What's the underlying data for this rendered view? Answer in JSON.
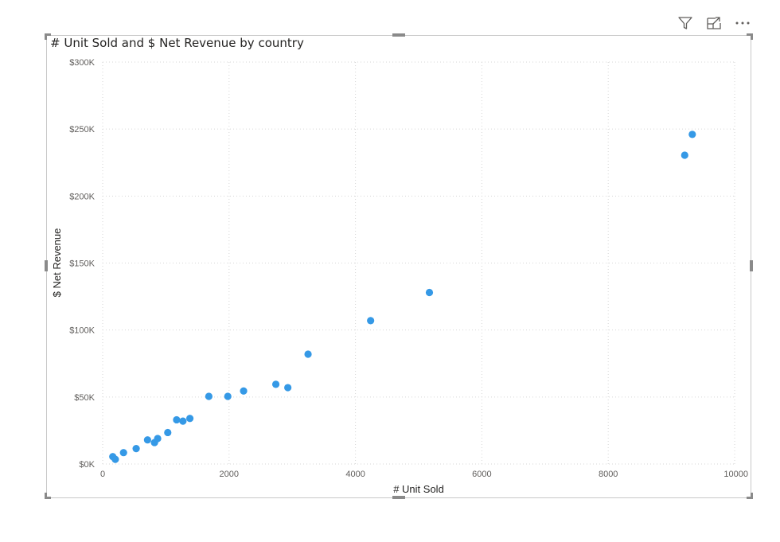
{
  "toolbar": {
    "filter_icon": "filter-icon",
    "focus_icon": "focus-mode-icon",
    "more_icon": "more-options-icon"
  },
  "chart_data": {
    "type": "scatter",
    "title": "# Unit Sold and $ Net Revenue by country",
    "xlabel": "# Unit Sold",
    "ylabel": "$ Net Revenue",
    "xlim": [
      0,
      10000
    ],
    "ylim": [
      0,
      300000
    ],
    "x_ticks": [
      0,
      2000,
      4000,
      6000,
      8000,
      10000
    ],
    "x_tick_labels": [
      "0",
      "2000",
      "4000",
      "6000",
      "8000",
      "10000"
    ],
    "y_ticks": [
      0,
      50000,
      100000,
      150000,
      200000,
      250000,
      300000
    ],
    "y_tick_labels": [
      "$0K",
      "$50K",
      "$100K",
      "$150K",
      "$200K",
      "$250K",
      "$300K"
    ],
    "grid": true,
    "marker_color": "#3599E6",
    "points": [
      {
        "x": 160,
        "y": 5500
      },
      {
        "x": 200,
        "y": 3500
      },
      {
        "x": 330,
        "y": 8500
      },
      {
        "x": 530,
        "y": 11500
      },
      {
        "x": 710,
        "y": 18000
      },
      {
        "x": 820,
        "y": 16000
      },
      {
        "x": 870,
        "y": 19000
      },
      {
        "x": 1030,
        "y": 23500
      },
      {
        "x": 1170,
        "y": 33000
      },
      {
        "x": 1270,
        "y": 32000
      },
      {
        "x": 1380,
        "y": 34000
      },
      {
        "x": 1680,
        "y": 50500
      },
      {
        "x": 1980,
        "y": 50500
      },
      {
        "x": 2230,
        "y": 54500
      },
      {
        "x": 2740,
        "y": 59500
      },
      {
        "x": 2930,
        "y": 57000
      },
      {
        "x": 3250,
        "y": 82000
      },
      {
        "x": 4240,
        "y": 107000
      },
      {
        "x": 5170,
        "y": 128000
      },
      {
        "x": 9210,
        "y": 230500
      },
      {
        "x": 9330,
        "y": 246000
      }
    ]
  }
}
